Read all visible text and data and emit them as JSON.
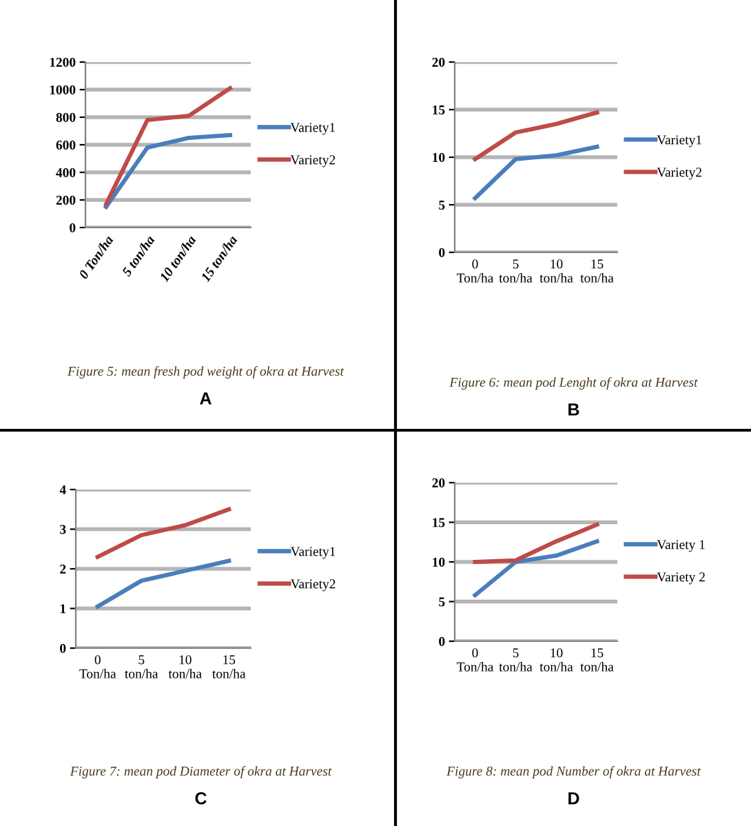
{
  "chart_data": [
    {
      "type": "line",
      "title": "Figure 5: mean fresh pod weight of okra at Harvest",
      "annotations": [
        "A"
      ],
      "categories": [
        "0 Ton/ha",
        "5 ton/ha",
        "10 ton/ha",
        "15 ton/ha"
      ],
      "ylim": [
        0,
        1200
      ],
      "yticks": [
        0,
        200,
        400,
        600,
        800,
        1000,
        1200
      ],
      "grid": "y",
      "legend": "right",
      "series": [
        {
          "name": "Variety1",
          "color": "#4a7ebb",
          "values": [
            150,
            580,
            650,
            670
          ]
        },
        {
          "name": "Variety2",
          "color": "#be4b48",
          "values": [
            170,
            780,
            810,
            1010
          ]
        }
      ]
    },
    {
      "type": "line",
      "title": "Figure 6: mean pod Lenght of okra at Harvest",
      "annotations": [
        "B"
      ],
      "categories": [
        "0\nTon/ha",
        "5\nton/ha",
        "10\nton/ha",
        "15\nton/ha"
      ],
      "ylim": [
        0,
        20
      ],
      "yticks": [
        0,
        5,
        10,
        15,
        20
      ],
      "grid": "y",
      "legend": "right",
      "series": [
        {
          "name": "Variety1",
          "color": "#4a7ebb",
          "values": [
            5.7,
            9.8,
            10.2,
            11.1
          ]
        },
        {
          "name": "Variety2",
          "color": "#be4b48",
          "values": [
            9.8,
            12.6,
            13.5,
            14.7
          ]
        }
      ]
    },
    {
      "type": "line",
      "title": "Figure 7: mean pod Diameter of okra at Harvest",
      "annotations": [
        "C"
      ],
      "categories": [
        "0\nTon/ha",
        "5\nton/ha",
        "10\nton/ha",
        "15\nton/ha"
      ],
      "ylim": [
        0,
        4
      ],
      "yticks": [
        0,
        1,
        2,
        3,
        4
      ],
      "grid": "y",
      "legend": "right",
      "series": [
        {
          "name": "Variety1",
          "color": "#4a7ebb",
          "values": [
            1.05,
            1.7,
            1.95,
            2.2
          ]
        },
        {
          "name": "Variety2",
          "color": "#be4b48",
          "values": [
            2.3,
            2.85,
            3.1,
            3.5
          ]
        }
      ]
    },
    {
      "type": "line",
      "title": "Figure 8: mean pod Number of okra at Harvest",
      "annotations": [
        "D"
      ],
      "categories": [
        "0\nTon/ha",
        "5\nton/ha",
        "10\nton/ha",
        "15\nton/ha"
      ],
      "ylim": [
        0,
        20
      ],
      "yticks": [
        0,
        5,
        10,
        15,
        20
      ],
      "grid": "y",
      "legend": "right",
      "series": [
        {
          "name": "Variety 1",
          "color": "#4a7ebb",
          "values": [
            5.8,
            10,
            10.8,
            12.6
          ]
        },
        {
          "name": "Variety 2",
          "color": "#be4b48",
          "values": [
            10,
            10.2,
            12.6,
            14.7
          ]
        }
      ]
    }
  ]
}
